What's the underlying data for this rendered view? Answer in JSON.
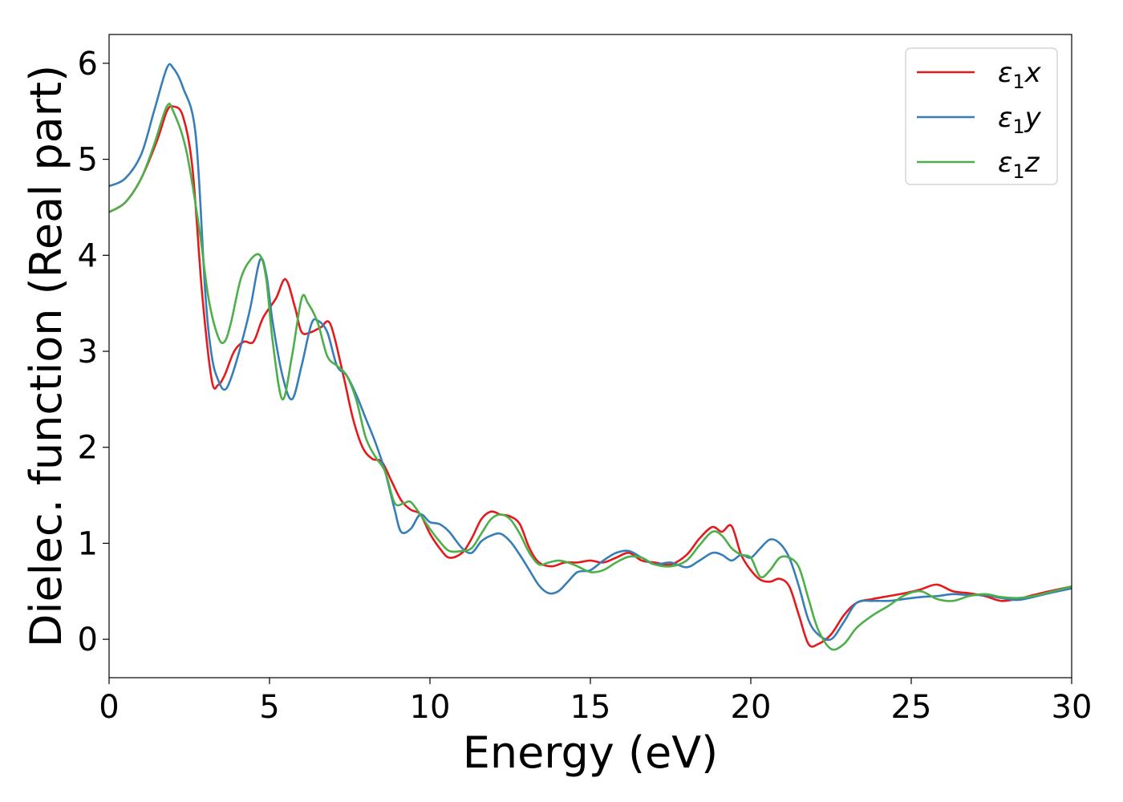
{
  "chart_data": {
    "type": "line",
    "xlabel": "Energy (eV)",
    "ylabel": "Dielec. function (Real part)",
    "xlim": [
      0,
      30
    ],
    "ylim": [
      -0.4,
      6.3
    ],
    "xticks": [
      0,
      5,
      10,
      15,
      20,
      25,
      30
    ],
    "xtick_labels": [
      "0",
      "5",
      "10",
      "15",
      "20",
      "25",
      "30"
    ],
    "yticks": [
      0,
      1,
      2,
      3,
      4,
      5,
      6
    ],
    "ytick_labels": [
      "0",
      "1",
      "2",
      "3",
      "4",
      "5",
      "6"
    ],
    "grid": false,
    "legend_position": "top-right",
    "series": [
      {
        "name": "ε1x",
        "legend_base": "ε",
        "legend_sub": "1",
        "legend_suffix": "x",
        "color": "#e41a1c",
        "x": [
          0,
          0.5,
          1.0,
          1.5,
          1.8,
          2.0,
          2.3,
          2.6,
          2.9,
          3.2,
          3.4,
          3.6,
          3.9,
          4.2,
          4.5,
          4.8,
          5.2,
          5.5,
          5.8,
          6.0,
          6.3,
          6.6,
          6.9,
          7.3,
          7.6,
          7.9,
          8.2,
          8.5,
          8.8,
          9.1,
          9.4,
          9.7,
          10.0,
          10.3,
          10.6,
          11.0,
          11.3,
          11.6,
          11.9,
          12.2,
          12.5,
          12.8,
          13.1,
          13.4,
          13.8,
          14.2,
          14.6,
          15.0,
          15.4,
          15.8,
          16.2,
          16.6,
          17.0,
          17.5,
          18.0,
          18.4,
          18.8,
          19.1,
          19.4,
          19.7,
          20.0,
          20.3,
          20.6,
          20.9,
          21.2,
          21.5,
          21.8,
          22.1,
          22.5,
          22.9,
          23.3,
          23.8,
          24.3,
          24.8,
          25.3,
          25.8,
          26.3,
          26.8,
          27.3,
          27.8,
          28.3,
          28.8,
          29.3,
          30.0
        ],
        "y": [
          4.45,
          4.55,
          4.8,
          5.2,
          5.5,
          5.55,
          5.45,
          4.9,
          3.6,
          2.7,
          2.65,
          2.75,
          3.0,
          3.1,
          3.1,
          3.35,
          3.55,
          3.75,
          3.45,
          3.2,
          3.2,
          3.25,
          3.28,
          2.75,
          2.3,
          2.0,
          1.88,
          1.85,
          1.65,
          1.45,
          1.35,
          1.3,
          1.1,
          0.95,
          0.85,
          0.9,
          1.05,
          1.25,
          1.33,
          1.3,
          1.28,
          1.2,
          0.95,
          0.8,
          0.76,
          0.8,
          0.8,
          0.82,
          0.8,
          0.85,
          0.9,
          0.82,
          0.8,
          0.78,
          0.88,
          1.05,
          1.17,
          1.12,
          1.18,
          0.88,
          0.72,
          0.62,
          0.6,
          0.63,
          0.55,
          0.25,
          -0.05,
          -0.05,
          0.05,
          0.25,
          0.38,
          0.42,
          0.45,
          0.48,
          0.52,
          0.57,
          0.5,
          0.48,
          0.45,
          0.4,
          0.42,
          0.46,
          0.5,
          0.55
        ]
      },
      {
        "name": "ε1y",
        "legend_base": "ε",
        "legend_sub": "1",
        "legend_suffix": "y",
        "color": "#377eb8",
        "x": [
          0,
          0.5,
          1.0,
          1.4,
          1.8,
          2.0,
          2.3,
          2.7,
          3.0,
          3.2,
          3.4,
          3.6,
          3.8,
          4.1,
          4.4,
          4.7,
          4.9,
          5.1,
          5.4,
          5.7,
          6.0,
          6.3,
          6.5,
          6.8,
          7.1,
          7.4,
          7.7,
          8.0,
          8.3,
          8.6,
          8.9,
          9.1,
          9.4,
          9.7,
          10.0,
          10.3,
          10.6,
          11.0,
          11.3,
          11.6,
          11.9,
          12.2,
          12.5,
          12.8,
          13.1,
          13.4,
          13.7,
          14.0,
          14.3,
          14.6,
          15.0,
          15.4,
          15.8,
          16.2,
          16.6,
          17.0,
          17.5,
          18.0,
          18.4,
          18.8,
          19.1,
          19.4,
          19.7,
          20.0,
          20.3,
          20.6,
          20.9,
          21.2,
          21.5,
          21.8,
          22.1,
          22.5,
          22.9,
          23.3,
          23.8,
          24.3,
          24.8,
          25.3,
          25.8,
          26.3,
          26.8,
          27.3,
          27.8,
          28.3,
          28.8,
          29.3,
          30.0
        ],
        "y": [
          4.72,
          4.8,
          5.05,
          5.5,
          5.95,
          5.95,
          5.75,
          5.25,
          3.6,
          2.95,
          2.7,
          2.6,
          2.72,
          3.05,
          3.45,
          3.95,
          3.8,
          3.3,
          2.75,
          2.5,
          2.85,
          3.28,
          3.32,
          3.2,
          2.85,
          2.75,
          2.55,
          2.3,
          2.05,
          1.75,
          1.35,
          1.12,
          1.15,
          1.3,
          1.22,
          1.2,
          1.12,
          0.95,
          0.9,
          1.02,
          1.08,
          1.1,
          1.02,
          0.88,
          0.72,
          0.56,
          0.48,
          0.5,
          0.6,
          0.7,
          0.72,
          0.82,
          0.9,
          0.92,
          0.85,
          0.78,
          0.8,
          0.75,
          0.82,
          0.9,
          0.88,
          0.82,
          0.88,
          0.85,
          0.95,
          1.04,
          1.0,
          0.85,
          0.55,
          0.2,
          0.05,
          0.0,
          0.18,
          0.38,
          0.4,
          0.4,
          0.42,
          0.44,
          0.45,
          0.47,
          0.46,
          0.46,
          0.43,
          0.41,
          0.44,
          0.48,
          0.53
        ]
      },
      {
        "name": "ε1z",
        "legend_base": "ε",
        "legend_sub": "1",
        "legend_suffix": "z",
        "color": "#4daf4a",
        "x": [
          0,
          0.5,
          1.0,
          1.4,
          1.8,
          2.0,
          2.4,
          2.8,
          3.1,
          3.4,
          3.6,
          3.8,
          4.1,
          4.4,
          4.7,
          4.9,
          5.1,
          5.4,
          5.7,
          6.0,
          6.2,
          6.5,
          6.8,
          7.1,
          7.4,
          7.7,
          8.0,
          8.3,
          8.6,
          8.9,
          9.2,
          9.4,
          9.7,
          10.0,
          10.3,
          10.6,
          11.0,
          11.3,
          11.6,
          11.9,
          12.2,
          12.5,
          12.8,
          13.1,
          13.4,
          13.7,
          14.0,
          14.3,
          14.6,
          15.0,
          15.4,
          15.8,
          16.2,
          16.6,
          17.0,
          17.5,
          18.0,
          18.4,
          18.8,
          19.1,
          19.4,
          19.7,
          20.0,
          20.3,
          20.6,
          20.9,
          21.2,
          21.5,
          21.8,
          22.1,
          22.5,
          22.9,
          23.3,
          23.8,
          24.3,
          24.8,
          25.3,
          25.8,
          26.3,
          26.8,
          27.3,
          27.8,
          28.3,
          28.8,
          29.3,
          30.0
        ],
        "y": [
          4.45,
          4.55,
          4.8,
          5.15,
          5.55,
          5.5,
          5.1,
          4.3,
          3.55,
          3.15,
          3.1,
          3.3,
          3.75,
          3.95,
          4.0,
          3.75,
          3.1,
          2.5,
          2.95,
          3.55,
          3.5,
          3.3,
          2.95,
          2.85,
          2.75,
          2.5,
          2.1,
          1.9,
          1.75,
          1.42,
          1.42,
          1.43,
          1.3,
          1.15,
          1.02,
          0.92,
          0.92,
          0.95,
          1.1,
          1.25,
          1.3,
          1.25,
          1.1,
          0.9,
          0.78,
          0.8,
          0.82,
          0.8,
          0.76,
          0.7,
          0.72,
          0.8,
          0.86,
          0.85,
          0.78,
          0.76,
          0.82,
          0.98,
          1.12,
          1.08,
          0.95,
          0.88,
          0.85,
          0.65,
          0.72,
          0.85,
          0.85,
          0.75,
          0.42,
          0.1,
          -0.1,
          -0.05,
          0.12,
          0.25,
          0.35,
          0.46,
          0.5,
          0.42,
          0.4,
          0.45,
          0.47,
          0.44,
          0.43,
          0.45,
          0.49,
          0.55
        ]
      }
    ]
  }
}
